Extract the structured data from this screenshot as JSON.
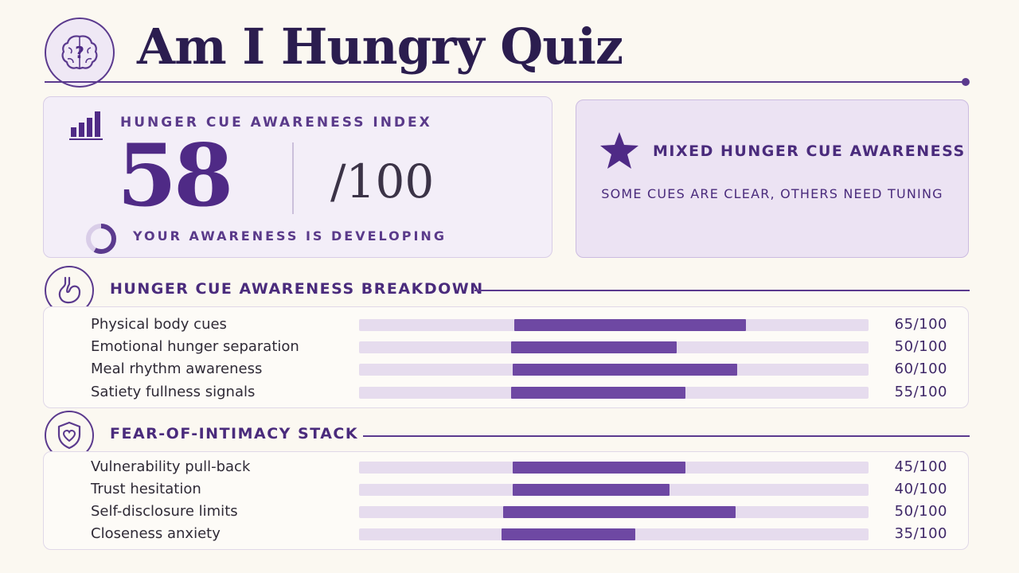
{
  "header": {
    "title": "Am I Hungry Quiz",
    "brain_icon": "brain-question-icon"
  },
  "score_card": {
    "label": "HUNGER CUE AWARENESS INDEX",
    "score": "58",
    "max": "/100",
    "ring_progress": 0.58,
    "subtitle": "YOUR AWARENESS IS DEVELOPING"
  },
  "result_card": {
    "title": "MIXED HUNGER CUE AWARENESS",
    "subtitle": "SOME CUES ARE CLEAR, OTHERS NEED TUNING"
  },
  "breakdown": {
    "title": "HUNGER CUE AWARENESS BREAKDOWN",
    "icon": "stomach-icon",
    "rows": [
      {
        "label": "Physical body cues",
        "value": "65/100",
        "start": 0.305,
        "end": 0.76
      },
      {
        "label": "Emotional hunger separation",
        "value": "50/100",
        "start": 0.299,
        "end": 0.623
      },
      {
        "label": "Meal rhythm awareness",
        "value": "60/100",
        "start": 0.301,
        "end": 0.742
      },
      {
        "label": "Satiety fullness signals",
        "value": "55/100",
        "start": 0.298,
        "end": 0.641
      }
    ]
  },
  "intimacy": {
    "title": "FEAR-OF-INTIMACY STACK",
    "icon": "shield-heart-icon",
    "rows": [
      {
        "label": "Vulnerability pull-back",
        "value": "45/100",
        "start": 0.302,
        "end": 0.64
      },
      {
        "label": "Trust hesitation",
        "value": "40/100",
        "start": 0.301,
        "end": 0.609
      },
      {
        "label": "Self-disclosure limits",
        "value": "50/100",
        "start": 0.283,
        "end": 0.739
      },
      {
        "label": "Closeness anxiety",
        "value": "35/100",
        "start": 0.28,
        "end": 0.542
      }
    ]
  },
  "colors": {
    "accent": "#5b3a8e",
    "bar_fill": "#6e48a3",
    "bar_track": "#e6dcee",
    "background": "#fbf8f1"
  }
}
